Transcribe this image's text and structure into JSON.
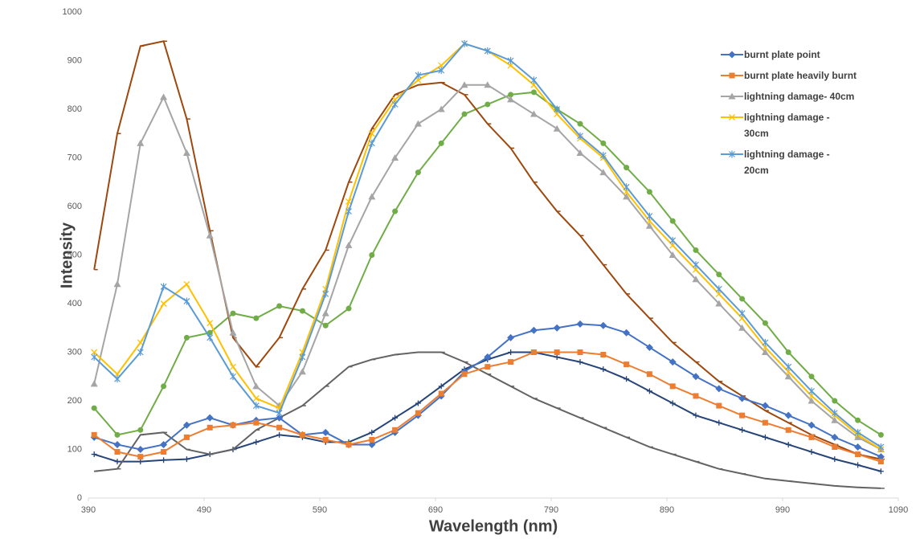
{
  "chart_data": {
    "type": "line",
    "y_label": "Intensity",
    "x_label": "Wavelength (nm)",
    "xlim": [
      390,
      1090
    ],
    "xticks": [
      390,
      490,
      590,
      690,
      790,
      890,
      990,
      1090
    ],
    "ylim": [
      0,
      1000
    ],
    "yticks": [
      0,
      100,
      200,
      300,
      400,
      500,
      600,
      700,
      800,
      900,
      1000
    ],
    "x": [
      395,
      415,
      435,
      455,
      475,
      495,
      515,
      535,
      555,
      575,
      595,
      615,
      635,
      655,
      675,
      695,
      715,
      735,
      755,
      775,
      795,
      815,
      835,
      855,
      875,
      895,
      915,
      935,
      955,
      975,
      995,
      1015,
      1035,
      1055,
      1075
    ],
    "series": [
      {
        "name": "burnt plate point",
        "color": "#4472c4",
        "marker": "diamond",
        "values": [
          125,
          110,
          100,
          110,
          150,
          165,
          150,
          160,
          165,
          130,
          135,
          110,
          110,
          135,
          170,
          210,
          260,
          290,
          330,
          345,
          350,
          358,
          355,
          340,
          310,
          280,
          250,
          225,
          205,
          190,
          170,
          150,
          125,
          105,
          85
        ]
      },
      {
        "name": "burnt plate heavily burnt",
        "color": "#ed7d31",
        "marker": "square",
        "values": [
          130,
          95,
          85,
          95,
          125,
          145,
          150,
          155,
          145,
          130,
          120,
          110,
          120,
          140,
          175,
          215,
          255,
          270,
          280,
          300,
          300,
          300,
          295,
          275,
          255,
          230,
          210,
          190,
          170,
          155,
          140,
          125,
          105,
          90,
          75
        ]
      },
      {
        "name": "lightning damage- 40cm",
        "color": "#a5a5a5",
        "marker": "triangle",
        "values": [
          235,
          440,
          730,
          825,
          710,
          540,
          340,
          230,
          190,
          260,
          380,
          520,
          620,
          700,
          770,
          800,
          850,
          850,
          820,
          790,
          760,
          710,
          670,
          620,
          560,
          500,
          450,
          400,
          350,
          300,
          250,
          200,
          160,
          125,
          100
        ]
      },
      {
        "name": "lightning damage - 30cm",
        "color": "#ffc000",
        "marker": "x",
        "values": [
          300,
          255,
          320,
          400,
          440,
          360,
          270,
          205,
          185,
          300,
          430,
          610,
          750,
          820,
          860,
          890,
          935,
          920,
          890,
          850,
          790,
          740,
          700,
          630,
          570,
          520,
          470,
          420,
          370,
          310,
          260,
          210,
          170,
          130,
          100
        ]
      },
      {
        "name": "lightning damage - 20cm",
        "color": "#5b9bd5",
        "marker": "star",
        "values": [
          290,
          245,
          300,
          435,
          405,
          330,
          250,
          190,
          175,
          290,
          420,
          590,
          730,
          810,
          870,
          880,
          935,
          920,
          900,
          860,
          800,
          745,
          705,
          640,
          580,
          530,
          480,
          430,
          380,
          320,
          270,
          220,
          175,
          135,
          105
        ]
      },
      {
        "color": "#70ad47",
        "marker": "circle",
        "values": [
          185,
          130,
          140,
          230,
          330,
          340,
          380,
          370,
          395,
          385,
          355,
          390,
          500,
          590,
          670,
          730,
          790,
          810,
          830,
          835,
          800,
          770,
          730,
          680,
          630,
          570,
          510,
          460,
          410,
          360,
          300,
          250,
          200,
          160,
          130
        ]
      },
      {
        "color": "#9e480e",
        "marker": "dash",
        "values": [
          470,
          750,
          930,
          940,
          780,
          550,
          330,
          270,
          330,
          430,
          510,
          650,
          760,
          830,
          850,
          855,
          830,
          770,
          720,
          650,
          590,
          540,
          480,
          420,
          370,
          320,
          280,
          240,
          210,
          180,
          155,
          130,
          110,
          90,
          80
        ]
      },
      {
        "color": "#264478",
        "marker": "plus",
        "values": [
          90,
          75,
          75,
          78,
          80,
          90,
          100,
          115,
          130,
          125,
          115,
          115,
          135,
          165,
          195,
          230,
          265,
          285,
          300,
          300,
          290,
          280,
          265,
          245,
          220,
          195,
          170,
          155,
          140,
          125,
          110,
          95,
          80,
          68,
          55
        ]
      },
      {
        "color": "#636363",
        "marker": "dash",
        "values": [
          55,
          60,
          130,
          135,
          100,
          90,
          100,
          140,
          165,
          190,
          230,
          270,
          285,
          295,
          300,
          300,
          280,
          255,
          230,
          205,
          185,
          165,
          145,
          125,
          105,
          90,
          75,
          60,
          50,
          40,
          35,
          30,
          25,
          22,
          20
        ]
      }
    ]
  }
}
